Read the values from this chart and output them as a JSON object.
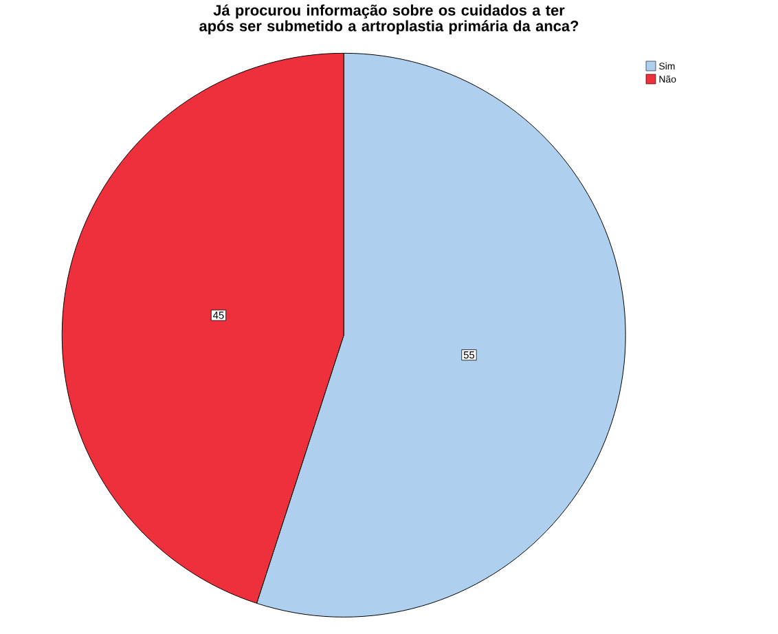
{
  "chart_data": {
    "type": "pie",
    "title": "Já procurou informação sobre os cuidados a ter após ser submetido a artroplastia primária da anca?",
    "categories": [
      "Sim",
      "Não"
    ],
    "values": [
      55,
      45
    ],
    "colors": [
      "#aed0ee",
      "#ee303c"
    ],
    "data_labels": true,
    "legend": "top right"
  }
}
